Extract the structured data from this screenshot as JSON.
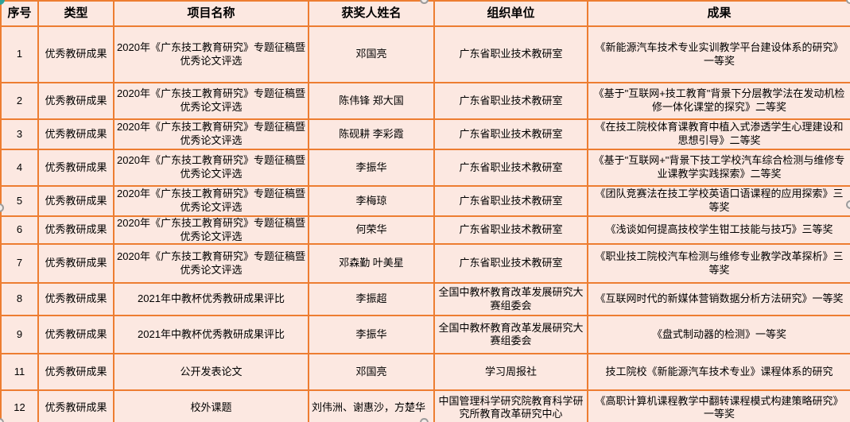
{
  "colors": {
    "table_background": "#fce8e1",
    "grid_border": "#ed7d31",
    "text": "#000000",
    "handle_gray": "#9b9b9b",
    "handle_teal": "#2fa198"
  },
  "table": {
    "columns": [
      "序号",
      "类型",
      "项目名称",
      "获奖人姓名",
      "组织单位",
      "成果"
    ],
    "rows": [
      {
        "cells": [
          "1",
          "优秀教研成果",
          "2020年《广东技工教育研究》专题征稿暨优秀论文评选",
          "邓国亮",
          "广东省职业技术教研室",
          "《新能源汽车技术专业实训教学平台建设体系的研究》一等奖"
        ]
      },
      {
        "cells": [
          "2",
          "优秀教研成果",
          "2020年《广东技工教育研究》专题征稿暨优秀论文评选",
          "陈伟锋 郑大国",
          "广东省职业技术教研室",
          "《基于\"互联网+技工教育\"背景下分层教学法在发动机检修一体化课堂的探究》二等奖"
        ]
      },
      {
        "cells": [
          "3",
          "优秀教研成果",
          "2020年《广东技工教育研究》专题征稿暨优秀论文评选",
          "陈砚耕 李彩霞",
          "广东省职业技术教研室",
          "《在技工院校体育课教育中植入式渗透学生心理建设和思想引导》二等奖"
        ]
      },
      {
        "cells": [
          "4",
          "优秀教研成果",
          "2020年《广东技工教育研究》专题征稿暨优秀论文评选",
          "李振华",
          "广东省职业技术教研室",
          "《基于\"互联网+\"背景下技工学校汽车综合检测与维修专业课教学实践探索》二等奖"
        ]
      },
      {
        "cells": [
          "5",
          "优秀教研成果",
          "2020年《广东技工教育研究》专题征稿暨优秀论文评选",
          "李梅琼",
          "广东省职业技术教研室",
          "《团队竞赛法在技工学校英语口语课程的应用探索》三等奖"
        ]
      },
      {
        "cells": [
          "6",
          "优秀教研成果",
          "2020年《广东技工教育研究》专题征稿暨优秀论文评选",
          "何荣华",
          "广东省职业技术教研室",
          "《浅谈如何提高技校学生钳工技能与技巧》三等奖"
        ]
      },
      {
        "cells": [
          "7",
          "优秀教研成果",
          "2020年《广东技工教育研究》专题征稿暨优秀论文评选",
          "邓森勤 叶美星",
          "广东省职业技术教研室",
          "《职业技工院校汽车检测与维修专业教学改革探析》三等奖"
        ]
      },
      {
        "cells": [
          "8",
          "优秀教研成果",
          "2021年中教杯优秀教研成果评比",
          "李振超",
          "全国中教杯教育改革发展研究大赛组委会",
          "《互联网时代的新媒体营销数据分析方法研究》一等奖"
        ]
      },
      {
        "cells": [
          "9",
          "优秀教研成果",
          "2021年中教杯优秀教研成果评比",
          "李振华",
          "全国中教杯教育改革发展研究大赛组委会",
          "《盘式制动器的检测》一等奖"
        ]
      },
      {
        "cells": [
          "11",
          "优秀教研成果",
          "公开发表论文",
          "邓国亮",
          "学习周报社",
          "技工院校《新能源汽车技术专业》课程体系的研究"
        ]
      },
      {
        "cells": [
          "12",
          "优秀教研成果",
          "校外课题",
          "刘伟洲、谢惠沙，方楚华",
          "中国管理科学研究院教育科学研究所教育改革研究中心",
          "《高职计算机课程教学中翻转课程模式构建策略研究》一等奖"
        ],
        "left_cols": [
          3
        ]
      }
    ]
  }
}
